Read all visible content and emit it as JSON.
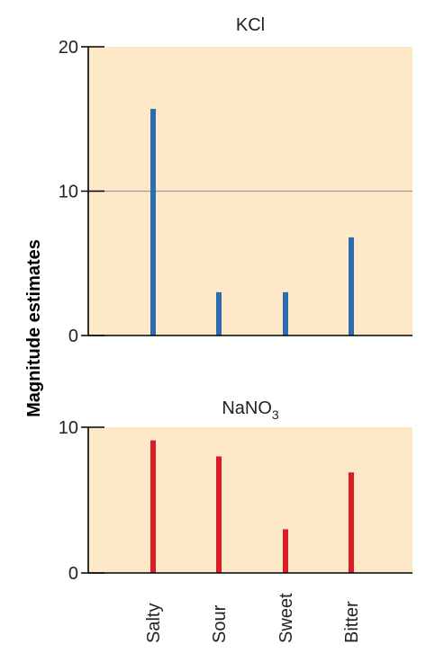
{
  "ylabel": "Magnitude estimates",
  "categories": [
    "Salty",
    "Sour",
    "Sweet",
    "Bitter"
  ],
  "colors": {
    "panel_background": "#fde9c8",
    "axis": "#000000",
    "reference_line": "#9a9a9a",
    "kcl_bars": "#2c6db0",
    "nano3_bars": "#d81e25"
  },
  "chart_data": [
    {
      "type": "bar",
      "title": "KCl",
      "categories": [
        "Salty",
        "Sour",
        "Sweet",
        "Bitter"
      ],
      "values": [
        15.7,
        3.0,
        3.0,
        6.8
      ],
      "ylim": [
        0,
        20
      ],
      "yticks": [
        0,
        10,
        20
      ],
      "reference_line": 10,
      "grid": false
    },
    {
      "type": "bar",
      "title": "NaNO",
      "title_subscript": "3",
      "categories": [
        "Salty",
        "Sour",
        "Sweet",
        "Bitter"
      ],
      "values": [
        9.1,
        8.0,
        3.0,
        6.9
      ],
      "ylim": [
        0,
        10
      ],
      "yticks": [
        0,
        10
      ],
      "grid": false
    }
  ]
}
